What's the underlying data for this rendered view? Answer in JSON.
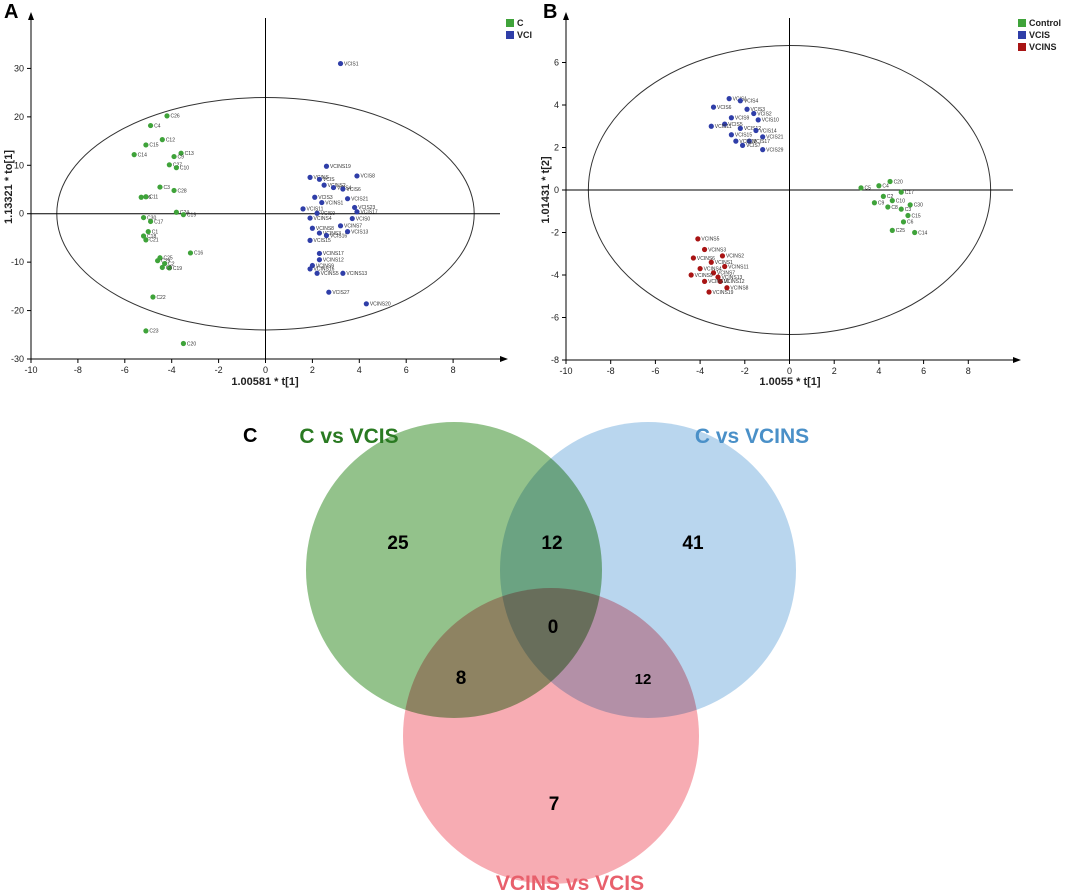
{
  "panels": {
    "a": "A",
    "b": "B",
    "c": "C"
  },
  "colors": {
    "green": "#3fa33a",
    "blue": "#2f3ea8",
    "red": "#a81414"
  },
  "chart_data": [
    {
      "id": "A",
      "type": "scatter",
      "xlabel": "1.00581 * t[1]",
      "ylabel": "1.13321 * to[1]",
      "xlim": [
        -10,
        10
      ],
      "ylim": [
        -30,
        40
      ],
      "xticks": [
        -10,
        -8,
        -6,
        -4,
        -2,
        0,
        2,
        4,
        6,
        8
      ],
      "yticks": [
        -30,
        -20,
        -10,
        0,
        10,
        20,
        30
      ],
      "ellipse": {
        "cx": 0,
        "cy": 0,
        "rx": 8.9,
        "ry": 24
      },
      "series": [
        {
          "name": "C",
          "color": "#3fa33a",
          "points": [
            {
              "label": "C26",
              "x": -4.2,
              "y": 20.2
            },
            {
              "label": "C4",
              "x": -4.9,
              "y": 18.2
            },
            {
              "label": "C12",
              "x": -4.4,
              "y": 15.3
            },
            {
              "label": "C15",
              "x": -5.1,
              "y": 14.2
            },
            {
              "label": "C13",
              "x": -3.6,
              "y": 12.5
            },
            {
              "label": "C14",
              "x": -5.6,
              "y": 12.2
            },
            {
              "label": "C9",
              "x": -3.9,
              "y": 11.8
            },
            {
              "label": "C27",
              "x": -4.1,
              "y": 10.1
            },
            {
              "label": "C10",
              "x": -3.8,
              "y": 9.5
            },
            {
              "label": "C3",
              "x": -4.5,
              "y": 5.5
            },
            {
              "label": "C28",
              "x": -3.9,
              "y": 4.8
            },
            {
              "label": "C6",
              "x": -5.3,
              "y": 3.4
            },
            {
              "label": "C11",
              "x": -5.1,
              "y": 3.5
            },
            {
              "label": "C24",
              "x": -3.8,
              "y": 0.3
            },
            {
              "label": "C19",
              "x": -3.5,
              "y": -0.2
            },
            {
              "label": "C30",
              "x": -5.2,
              "y": -0.8
            },
            {
              "label": "C17",
              "x": -4.9,
              "y": -1.6
            },
            {
              "label": "C1",
              "x": -5.0,
              "y": -3.7
            },
            {
              "label": "C18",
              "x": -5.2,
              "y": -4.6
            },
            {
              "label": "C21",
              "x": -5.1,
              "y": -5.4
            },
            {
              "label": "C16",
              "x": -3.2,
              "y": -8.1
            },
            {
              "label": "C25",
              "x": -4.5,
              "y": -9.1
            },
            {
              "label": "C29",
              "x": -4.6,
              "y": -9.7
            },
            {
              "label": "C2",
              "x": -4.3,
              "y": -10.3
            },
            {
              "label": "C19",
              "x": -4.1,
              "y": -11.2
            },
            {
              "label": "C8",
              "x": -4.4,
              "y": -11.1
            },
            {
              "label": "C22",
              "x": -4.8,
              "y": -17.2
            },
            {
              "label": "C23",
              "x": -5.1,
              "y": -24.2
            },
            {
              "label": "C20",
              "x": -3.5,
              "y": -26.8
            }
          ]
        },
        {
          "name": "VCI",
          "color": "#2f3ea8",
          "points": [
            {
              "label": "VCIS1",
              "x": 3.2,
              "y": 31.0
            },
            {
              "label": "VCINS19",
              "x": 2.6,
              "y": 9.8
            },
            {
              "label": "VCIS8",
              "x": 3.9,
              "y": 7.8
            },
            {
              "label": "VCINS",
              "x": 1.9,
              "y": 7.5
            },
            {
              "label": "VCIS",
              "x": 2.3,
              "y": 7.1
            },
            {
              "label": "VCINS2",
              "x": 2.5,
              "y": 5.9
            },
            {
              "label": "VCIS4",
              "x": 2.9,
              "y": 5.4
            },
            {
              "label": "VCIS6",
              "x": 3.3,
              "y": 5.1
            },
            {
              "label": "VCIS21",
              "x": 3.5,
              "y": 3.1
            },
            {
              "label": "VCIS3",
              "x": 2.1,
              "y": 3.4
            },
            {
              "label": "VCINS1",
              "x": 2.4,
              "y": 2.3
            },
            {
              "label": "VCIS23",
              "x": 3.8,
              "y": 1.3
            },
            {
              "label": "VCIS11",
              "x": 1.6,
              "y": 1.0
            },
            {
              "label": "VCIS17",
              "x": 3.9,
              "y": 0.4
            },
            {
              "label": "VCIS9",
              "x": 2.2,
              "y": 0.1
            },
            {
              "label": "VCIS0",
              "x": 3.7,
              "y": -1.0
            },
            {
              "label": "VCINS4",
              "x": 1.9,
              "y": -0.9
            },
            {
              "label": "VCINS7",
              "x": 3.2,
              "y": -2.5
            },
            {
              "label": "VCINS8",
              "x": 2.0,
              "y": -3.0
            },
            {
              "label": "VCIS13",
              "x": 3.5,
              "y": -3.7
            },
            {
              "label": "VCINS3",
              "x": 2.3,
              "y": -4.0
            },
            {
              "label": "VCIS16",
              "x": 2.6,
              "y": -4.5
            },
            {
              "label": "VCIS15",
              "x": 1.9,
              "y": -5.5
            },
            {
              "label": "VCINS17",
              "x": 2.3,
              "y": -8.2
            },
            {
              "label": "VCINS12",
              "x": 2.3,
              "y": -9.5
            },
            {
              "label": "VCINS9",
              "x": 2.0,
              "y": -10.7
            },
            {
              "label": "VCINS16",
              "x": 1.9,
              "y": -11.4
            },
            {
              "label": "VCINS5",
              "x": 2.2,
              "y": -12.3
            },
            {
              "label": "VCINS13",
              "x": 3.3,
              "y": -12.3
            },
            {
              "label": "VCIS27",
              "x": 2.7,
              "y": -16.2
            },
            {
              "label": "VCINS20",
              "x": 4.3,
              "y": -18.6
            }
          ]
        }
      ]
    },
    {
      "id": "B",
      "type": "scatter",
      "xlabel": "1.0055 * t[1]",
      "ylabel": "1.01431 * t[2]",
      "xlim": [
        -10,
        10
      ],
      "ylim": [
        -8,
        8
      ],
      "xticks": [
        -10,
        -8,
        -6,
        -4,
        -2,
        0,
        2,
        4,
        6,
        8
      ],
      "yticks": [
        -8,
        -6,
        -4,
        -2,
        0,
        2,
        4,
        6
      ],
      "ellipse": {
        "cx": 0,
        "cy": 0,
        "rx": 9.0,
        "ry": 6.8
      },
      "series": [
        {
          "name": "Control",
          "color": "#3fa33a",
          "points": [
            {
              "label": "C20",
              "x": 4.5,
              "y": 0.4
            },
            {
              "label": "C4",
              "x": 4.0,
              "y": 0.2
            },
            {
              "label": "C5",
              "x": 3.2,
              "y": 0.1
            },
            {
              "label": "C17",
              "x": 5.0,
              "y": -0.1
            },
            {
              "label": "C2",
              "x": 4.2,
              "y": -0.3
            },
            {
              "label": "C10",
              "x": 4.6,
              "y": -0.5
            },
            {
              "label": "C9",
              "x": 3.8,
              "y": -0.6
            },
            {
              "label": "C8",
              "x": 4.4,
              "y": -0.8
            },
            {
              "label": "C30",
              "x": 5.4,
              "y": -0.7
            },
            {
              "label": "C3",
              "x": 5.0,
              "y": -0.9
            },
            {
              "label": "C15",
              "x": 5.3,
              "y": -1.2
            },
            {
              "label": "C6",
              "x": 5.1,
              "y": -1.5
            },
            {
              "label": "C25",
              "x": 4.6,
              "y": -1.9
            },
            {
              "label": "C14",
              "x": 5.6,
              "y": -2.0
            }
          ]
        },
        {
          "name": "VCIS",
          "color": "#2f3ea8",
          "points": [
            {
              "label": "VCIS1",
              "x": -2.7,
              "y": 4.3
            },
            {
              "label": "VCIS4",
              "x": -2.2,
              "y": 4.2
            },
            {
              "label": "VCIS6",
              "x": -3.4,
              "y": 3.9
            },
            {
              "label": "VCIS3",
              "x": -1.9,
              "y": 3.8
            },
            {
              "label": "VCIS2",
              "x": -1.6,
              "y": 3.6
            },
            {
              "label": "VCIS9",
              "x": -2.6,
              "y": 3.4
            },
            {
              "label": "VCIS10",
              "x": -1.4,
              "y": 3.3
            },
            {
              "label": "VCIS5",
              "x": -2.9,
              "y": 3.1
            },
            {
              "label": "VCIS11",
              "x": -3.5,
              "y": 3.0
            },
            {
              "label": "VCIS12",
              "x": -2.2,
              "y": 2.9
            },
            {
              "label": "VCIS14",
              "x": -1.5,
              "y": 2.8
            },
            {
              "label": "VCIS15",
              "x": -2.6,
              "y": 2.6
            },
            {
              "label": "VCIS21",
              "x": -1.2,
              "y": 2.5
            },
            {
              "label": "VCIS17",
              "x": -1.8,
              "y": 2.3
            },
            {
              "label": "VCIS18",
              "x": -2.4,
              "y": 2.3
            },
            {
              "label": "VCIS7",
              "x": -2.1,
              "y": 2.1
            },
            {
              "label": "VCIS29",
              "x": -1.2,
              "y": 1.9
            }
          ]
        },
        {
          "name": "VCINS",
          "color": "#a81414",
          "points": [
            {
              "label": "VCINS5",
              "x": -4.1,
              "y": -2.3
            },
            {
              "label": "VCINS3",
              "x": -3.8,
              "y": -2.8
            },
            {
              "label": "VCINS2",
              "x": -3.0,
              "y": -3.1
            },
            {
              "label": "VCINS6",
              "x": -4.3,
              "y": -3.2
            },
            {
              "label": "VCINS1",
              "x": -3.5,
              "y": -3.4
            },
            {
              "label": "VCINS11",
              "x": -2.9,
              "y": -3.6
            },
            {
              "label": "VCINS4",
              "x": -4.0,
              "y": -3.7
            },
            {
              "label": "VCINS7",
              "x": -3.4,
              "y": -3.9
            },
            {
              "label": "VCINS9",
              "x": -4.4,
              "y": -4.0
            },
            {
              "label": "VCINS13",
              "x": -3.2,
              "y": -4.1
            },
            {
              "label": "VCINS12",
              "x": -3.1,
              "y": -4.3
            },
            {
              "label": "VCINS10",
              "x": -3.8,
              "y": -4.3
            },
            {
              "label": "VCINS8",
              "x": -2.8,
              "y": -4.6
            },
            {
              "label": "VCINS19",
              "x": -3.6,
              "y": -4.8
            }
          ]
        }
      ]
    },
    {
      "id": "C",
      "type": "venn",
      "sets": [
        {
          "name": "C vs VCIS",
          "color": "#6aaa5e",
          "title_color": "#2a7a22"
        },
        {
          "name": "C vs VCINS",
          "color": "#9ec6e8",
          "title_color": "#4a90c8"
        },
        {
          "name": "VCINS vs VCIS",
          "color": "#f48c95",
          "title_color": "#e8606c"
        }
      ],
      "regions": {
        "only_c_vcis": 25,
        "c_vcis_and_c_vcins": 12,
        "only_c_vcins": 41,
        "all_three": 0,
        "c_vcis_and_vcins_vcis": 8,
        "c_vcins_and_vcins_vcis": 12,
        "only_vcins_vcis": 7
      }
    }
  ]
}
